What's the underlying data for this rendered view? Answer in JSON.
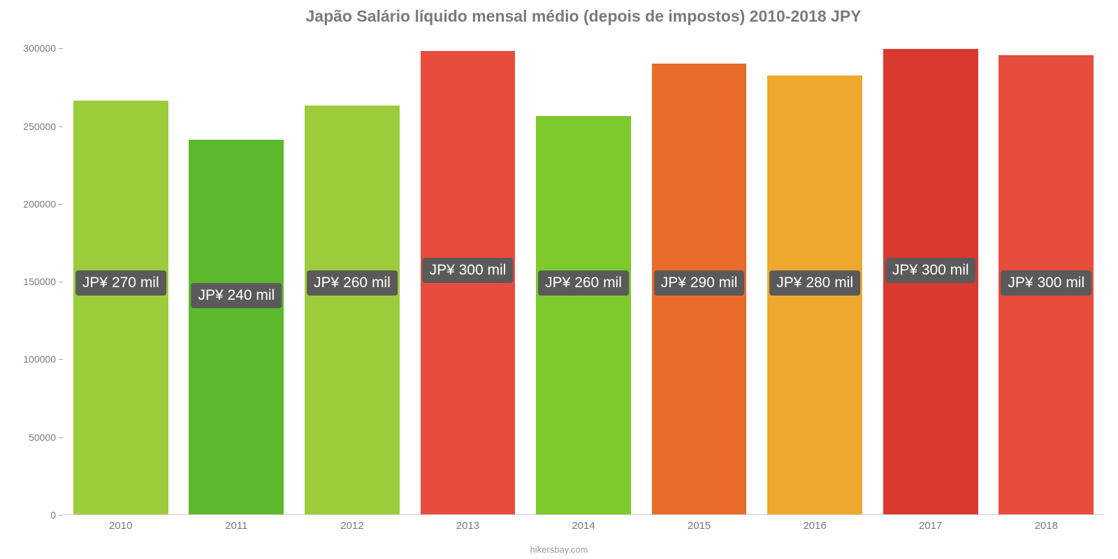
{
  "chart": {
    "type": "bar",
    "title": "Japão Salário líquido mensal médio (depois de impostos) 2010-2018 JPY",
    "title_fontsize": 23,
    "title_color": "#7a7a7a",
    "background_color": "#ffffff",
    "source": "hikersbay.com",
    "y": {
      "min": 0,
      "max": 310000,
      "ticks": [
        0,
        50000,
        100000,
        150000,
        200000,
        250000,
        300000
      ],
      "tick_fontsize": 14,
      "tick_color": "#7a7a7a"
    },
    "x": {
      "categories": [
        "2010",
        "2011",
        "2012",
        "2013",
        "2014",
        "2015",
        "2016",
        "2017",
        "2018"
      ],
      "label_fontsize": 15,
      "label_color": "#7a7a7a"
    },
    "bars": [
      {
        "value": 266000,
        "color": "#9ccc3c",
        "label": "JP¥ 270 mil"
      },
      {
        "value": 241000,
        "color": "#5cb82c",
        "label": "JP¥ 240 mil"
      },
      {
        "value": 263000,
        "color": "#9ccc3c",
        "label": "JP¥ 260 mil"
      },
      {
        "value": 298000,
        "color": "#e84c3d",
        "label": "JP¥ 300 mil"
      },
      {
        "value": 256000,
        "color": "#7ec92e",
        "label": "JP¥ 260 mil"
      },
      {
        "value": 290000,
        "color": "#ea6a2c",
        "label": "JP¥ 290 mil"
      },
      {
        "value": 282000,
        "color": "#eea82e",
        "label": "JP¥ 280 mil"
      },
      {
        "value": 299000,
        "color": "#d9392f",
        "label": "JP¥ 300 mil"
      },
      {
        "value": 295000,
        "color": "#e84c3d",
        "label": "JP¥ 300 mil"
      }
    ],
    "bar_width_ratio": 0.82,
    "value_label": {
      "background": "#5a5a5a",
      "text_color": "#ffffff",
      "fontsize": 21,
      "y_position_value": 150000
    }
  }
}
